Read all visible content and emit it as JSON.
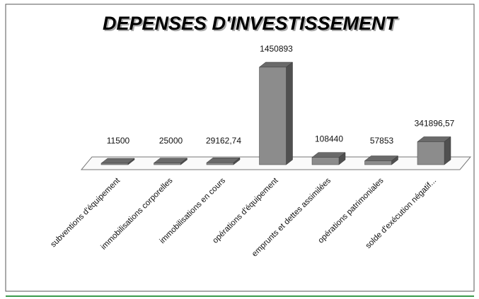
{
  "chart_data": {
    "type": "bar",
    "title": "DEPENSES D'INVESTISSEMENT",
    "categories": [
      "subventions d'équipement",
      "immobilisations corporelles",
      "immobilisations en cours",
      "opérations d'équipement",
      "emprunts et dettes assimilées",
      "opérations patrimoniales",
      "solde d'exécution négatif..."
    ],
    "values": [
      11500,
      25000,
      29162.74,
      1450893,
      108440,
      57853,
      341896.57
    ],
    "value_labels": [
      "11500",
      "25000",
      "29162,74",
      "1450893",
      "108440",
      "57853",
      "341896,57"
    ],
    "color": "#8c8c8c"
  }
}
